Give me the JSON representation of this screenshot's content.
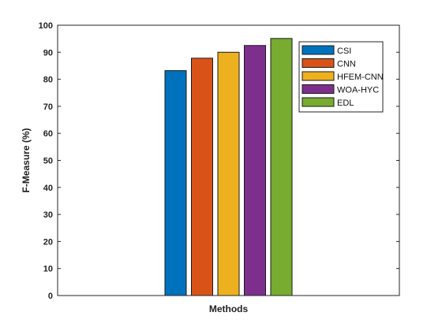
{
  "chart_data": {
    "type": "bar",
    "title": "",
    "xlabel": "Methods",
    "ylabel": "F-Measure (%)",
    "categories": [
      ""
    ],
    "ylim": [
      0,
      100
    ],
    "yticks": [
      0,
      10,
      20,
      30,
      40,
      50,
      60,
      70,
      80,
      90,
      100
    ],
    "grid": false,
    "legend_position": "top-right",
    "series": [
      {
        "name": "CSI",
        "values": [
          83.2
        ],
        "color": "#0072BD"
      },
      {
        "name": "CNN",
        "values": [
          87.8
        ],
        "color": "#D95319"
      },
      {
        "name": "HFEM-CNN",
        "values": [
          90.0
        ],
        "color": "#EDB120"
      },
      {
        "name": "WOA-HYC",
        "values": [
          92.5
        ],
        "color": "#7E2F8E"
      },
      {
        "name": "EDL",
        "values": [
          95.1
        ],
        "color": "#77AC30"
      }
    ]
  }
}
